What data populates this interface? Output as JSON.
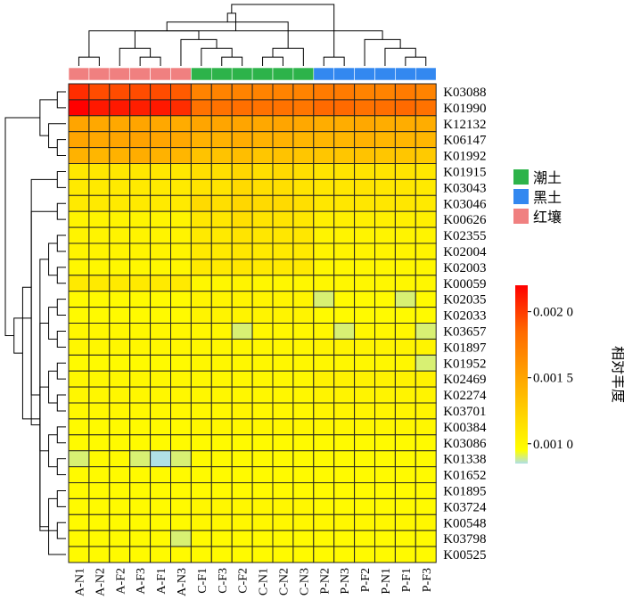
{
  "chart_data": {
    "type": "heatmap",
    "columns": [
      "A-N1",
      "A-N2",
      "A-F2",
      "A-F3",
      "A-F1",
      "A-N3",
      "C-F1",
      "C-F3",
      "C-F2",
      "C-N1",
      "C-N2",
      "C-N3",
      "P-N2",
      "P-N3",
      "P-F2",
      "P-N1",
      "P-F1",
      "P-F3"
    ],
    "column_groups": [
      "红壤",
      "红壤",
      "红壤",
      "红壤",
      "红壤",
      "红壤",
      "潮土",
      "潮土",
      "潮土",
      "潮土",
      "潮土",
      "潮土",
      "黑土",
      "黑土",
      "黑土",
      "黑土",
      "黑土",
      "黑土"
    ],
    "rows": [
      "K03088",
      "K01990",
      "K12132",
      "K06147",
      "K01992",
      "K01915",
      "K03043",
      "K03046",
      "K00626",
      "K02355",
      "K02004",
      "K02003",
      "K00059",
      "K02035",
      "K02033",
      "K03657",
      "K01897",
      "K01952",
      "K02469",
      "K02274",
      "K03701",
      "K00384",
      "K03086",
      "K01338",
      "K01652",
      "K01895",
      "K03724",
      "K00548",
      "K03798",
      "K00525"
    ],
    "values": [
      [
        0.00205,
        0.00195,
        0.00195,
        0.00195,
        0.00195,
        0.0019,
        0.0017,
        0.0017,
        0.0017,
        0.0017,
        0.0017,
        0.0017,
        0.00175,
        0.00175,
        0.0017,
        0.0017,
        0.00175,
        0.0017
      ],
      [
        0.0022,
        0.00212,
        0.00212,
        0.0021,
        0.00212,
        0.00205,
        0.0018,
        0.0018,
        0.00182,
        0.0018,
        0.0018,
        0.00178,
        0.00185,
        0.00185,
        0.0018,
        0.00182,
        0.00185,
        0.0018
      ],
      [
        0.0015,
        0.00148,
        0.00148,
        0.0015,
        0.00148,
        0.00146,
        0.0015,
        0.0015,
        0.0015,
        0.00148,
        0.0015,
        0.00148,
        0.00145,
        0.00145,
        0.00148,
        0.00145,
        0.00145,
        0.00145
      ],
      [
        0.0015,
        0.00148,
        0.0015,
        0.00152,
        0.0015,
        0.00148,
        0.00142,
        0.00142,
        0.00145,
        0.00142,
        0.00142,
        0.0014,
        0.0014,
        0.0014,
        0.00142,
        0.0014,
        0.0014,
        0.0014
      ],
      [
        0.00142,
        0.0014,
        0.00142,
        0.00145,
        0.00142,
        0.0014,
        0.00132,
        0.00132,
        0.00135,
        0.0013,
        0.00132,
        0.0013,
        0.0013,
        0.0013,
        0.00132,
        0.0013,
        0.0013,
        0.00128
      ],
      [
        0.0011,
        0.0011,
        0.0011,
        0.0011,
        0.0011,
        0.0011,
        0.00115,
        0.00115,
        0.0012,
        0.00115,
        0.00118,
        0.00115,
        0.00112,
        0.00112,
        0.00112,
        0.00112,
        0.00112,
        0.0011
      ],
      [
        0.00108,
        0.00108,
        0.00108,
        0.00108,
        0.00108,
        0.00108,
        0.00112,
        0.00112,
        0.00118,
        0.00115,
        0.00115,
        0.00112,
        0.0011,
        0.0011,
        0.00112,
        0.0011,
        0.0011,
        0.00108
      ],
      [
        0.00108,
        0.00108,
        0.00108,
        0.00108,
        0.00108,
        0.00108,
        0.00118,
        0.00115,
        0.0012,
        0.00118,
        0.00118,
        0.00115,
        0.0011,
        0.0011,
        0.0011,
        0.0011,
        0.0011,
        0.00108
      ],
      [
        0.00102,
        0.00102,
        0.00102,
        0.00102,
        0.00102,
        0.00102,
        0.0011,
        0.0011,
        0.00115,
        0.00112,
        0.00112,
        0.0011,
        0.00105,
        0.00105,
        0.00105,
        0.00105,
        0.00105,
        0.00105
      ],
      [
        0.00102,
        0.00102,
        0.00102,
        0.00102,
        0.00102,
        0.00102,
        0.00108,
        0.00108,
        0.00112,
        0.0011,
        0.0011,
        0.0011,
        0.00102,
        0.00102,
        0.00102,
        0.00102,
        0.00102,
        0.00102
      ],
      [
        0.00102,
        0.00102,
        0.00102,
        0.00102,
        0.00102,
        0.00102,
        0.00108,
        0.00108,
        0.0011,
        0.00108,
        0.00108,
        0.00108,
        0.00102,
        0.00102,
        0.00102,
        0.00102,
        0.00102,
        0.00102
      ],
      [
        0.001,
        0.001,
        0.001,
        0.001,
        0.001,
        0.001,
        0.00108,
        0.00108,
        0.0011,
        0.00108,
        0.00108,
        0.00108,
        0.001,
        0.001,
        0.001,
        0.001,
        0.001,
        0.001
      ],
      [
        0.00108,
        0.00108,
        0.00108,
        0.00108,
        0.00108,
        0.00108,
        0.001,
        0.001,
        0.00102,
        0.001,
        0.001,
        0.001,
        0.001,
        0.001,
        0.001,
        0.001,
        0.001,
        0.001
      ],
      [
        0.00098,
        0.00098,
        0.00098,
        0.00098,
        0.00098,
        0.00098,
        0.00102,
        0.00102,
        0.00102,
        0.00102,
        0.00102,
        0.00102,
        0.0009,
        0.00098,
        0.00098,
        0.00098,
        0.0009,
        0.00098
      ],
      [
        0.00098,
        0.00098,
        0.00098,
        0.00098,
        0.00098,
        0.00098,
        0.00102,
        0.00102,
        0.00102,
        0.00102,
        0.00102,
        0.00102,
        0.00098,
        0.00098,
        0.00098,
        0.00098,
        0.00098,
        0.00098
      ],
      [
        0.001,
        0.001,
        0.001,
        0.001,
        0.001,
        0.001,
        0.001,
        0.001,
        0.0009,
        0.001,
        0.001,
        0.001,
        0.001,
        0.0009,
        0.001,
        0.001,
        0.001,
        0.0009
      ],
      [
        0.001,
        0.001,
        0.001,
        0.001,
        0.001,
        0.001,
        0.001,
        0.001,
        0.001,
        0.001,
        0.001,
        0.001,
        0.00102,
        0.00102,
        0.00102,
        0.00102,
        0.00102,
        0.00102
      ],
      [
        0.00098,
        0.00098,
        0.00098,
        0.00098,
        0.00098,
        0.00098,
        0.001,
        0.001,
        0.001,
        0.001,
        0.001,
        0.001,
        0.001,
        0.001,
        0.001,
        0.001,
        0.001,
        0.0009
      ],
      [
        0.001,
        0.001,
        0.001,
        0.001,
        0.001,
        0.001,
        0.001,
        0.001,
        0.001,
        0.001,
        0.001,
        0.001,
        0.00104,
        0.00104,
        0.00104,
        0.00104,
        0.00104,
        0.00104
      ],
      [
        0.001,
        0.001,
        0.001,
        0.001,
        0.001,
        0.001,
        0.001,
        0.001,
        0.001,
        0.001,
        0.001,
        0.001,
        0.00102,
        0.00102,
        0.00102,
        0.00102,
        0.00102,
        0.00102
      ],
      [
        0.001,
        0.001,
        0.001,
        0.001,
        0.001,
        0.001,
        0.001,
        0.001,
        0.00102,
        0.001,
        0.001,
        0.001,
        0.00102,
        0.00102,
        0.00102,
        0.00102,
        0.00102,
        0.00102
      ],
      [
        0.00098,
        0.00098,
        0.00098,
        0.00098,
        0.00098,
        0.00098,
        0.001,
        0.001,
        0.001,
        0.001,
        0.001,
        0.001,
        0.001,
        0.001,
        0.001,
        0.001,
        0.001,
        0.001
      ],
      [
        0.00098,
        0.00098,
        0.00098,
        0.00098,
        0.00098,
        0.00098,
        0.00098,
        0.00098,
        0.00098,
        0.00098,
        0.00098,
        0.00098,
        0.00098,
        0.00098,
        0.00098,
        0.00098,
        0.00098,
        0.00098
      ],
      [
        0.0009,
        0.00098,
        0.00098,
        0.0009,
        0.00085,
        0.0009,
        0.00098,
        0.00098,
        0.00098,
        0.00098,
        0.00098,
        0.00098,
        0.00098,
        0.00098,
        0.00098,
        0.00098,
        0.00098,
        0.00098
      ],
      [
        0.00098,
        0.00098,
        0.00098,
        0.00098,
        0.00098,
        0.00098,
        0.00098,
        0.00098,
        0.00098,
        0.00098,
        0.00098,
        0.00098,
        0.00098,
        0.00098,
        0.00098,
        0.00098,
        0.00098,
        0.00098
      ],
      [
        0.00098,
        0.00098,
        0.00098,
        0.00098,
        0.00098,
        0.00098,
        0.00098,
        0.00098,
        0.00098,
        0.00098,
        0.00098,
        0.00098,
        0.00098,
        0.00098,
        0.00098,
        0.00098,
        0.00098,
        0.00098
      ],
      [
        0.00098,
        0.00098,
        0.00098,
        0.00098,
        0.00098,
        0.00098,
        0.001,
        0.001,
        0.001,
        0.001,
        0.001,
        0.001,
        0.00098,
        0.00098,
        0.00098,
        0.00098,
        0.00098,
        0.00098
      ],
      [
        0.00098,
        0.00098,
        0.00098,
        0.00098,
        0.00098,
        0.00098,
        0.001,
        0.001,
        0.001,
        0.001,
        0.001,
        0.001,
        0.001,
        0.001,
        0.001,
        0.001,
        0.001,
        0.001
      ],
      [
        0.00098,
        0.00098,
        0.00098,
        0.00098,
        0.00098,
        0.0009,
        0.00098,
        0.00098,
        0.00098,
        0.00098,
        0.00098,
        0.00098,
        0.00098,
        0.00098,
        0.00098,
        0.00098,
        0.00098,
        0.00098
      ],
      [
        0.00098,
        0.00098,
        0.00098,
        0.00098,
        0.00098,
        0.00098,
        0.00098,
        0.00098,
        0.00098,
        0.00098,
        0.00098,
        0.00098,
        0.00098,
        0.00098,
        0.00098,
        0.00098,
        0.00098,
        0.00098
      ]
    ],
    "color_scale": {
      "min": 0.00085,
      "max": 0.0022,
      "stops": [
        {
          "v": 0.00085,
          "color": "#b0e0e6"
        },
        {
          "v": 0.00095,
          "color": "#ffff00"
        },
        {
          "v": 0.0012,
          "color": "#ffd700"
        },
        {
          "v": 0.0015,
          "color": "#ffa500"
        },
        {
          "v": 0.00185,
          "color": "#ff6a00"
        },
        {
          "v": 0.0022,
          "color": "#ff0000"
        }
      ],
      "ticks": [
        {
          "v": 0.001,
          "label": "0.001 0"
        },
        {
          "v": 0.0015,
          "label": "0.001 5"
        },
        {
          "v": 0.002,
          "label": "0.002 0"
        }
      ],
      "title": "相对丰度"
    },
    "legend": [
      {
        "label": "潮土",
        "color": "#2db34a"
      },
      {
        "label": "黑土",
        "color": "#3388f0"
      },
      {
        "label": "红壤",
        "color": "#f08080"
      }
    ],
    "group_colors": {
      "红壤": "#f08080",
      "潮土": "#2db34a",
      "黑土": "#3388f0"
    },
    "column_dendrogram": [
      [
        12,
        13
      ],
      [
        16,
        17
      ],
      [
        19,
        15
      ],
      [
        14,
        20
      ],
      [
        7,
        8
      ],
      [
        9,
        10
      ],
      [
        23,
        11
      ],
      [
        22,
        6
      ],
      [
        3,
        4
      ],
      [
        25,
        5
      ],
      [
        2,
        26
      ],
      [
        0,
        1
      ],
      [
        28,
        27
      ],
      [
        21,
        29
      ],
      [
        24,
        30
      ],
      [
        31,
        32
      ],
      [
        18,
        33
      ]
    ],
    "row_dendrogram": [
      [
        0,
        1
      ],
      [
        3,
        4
      ],
      [
        2,
        31
      ],
      [
        32,
        30
      ],
      [
        5,
        6
      ],
      [
        7,
        8
      ],
      [
        9,
        10
      ],
      [
        11,
        12
      ],
      [
        13,
        14
      ],
      [
        15,
        16
      ],
      [
        17,
        18
      ],
      [
        19,
        20
      ],
      [
        21,
        22
      ],
      [
        23,
        24
      ],
      [
        25,
        26
      ],
      [
        27,
        28
      ],
      [
        29,
        44
      ],
      [
        36,
        37
      ],
      [
        38,
        39
      ],
      [
        40,
        41
      ],
      [
        42,
        43
      ],
      [
        45,
        47
      ],
      [
        46,
        48
      ],
      [
        49,
        50
      ],
      [
        51,
        34
      ],
      [
        52,
        35
      ],
      [
        53,
        54
      ],
      [
        55,
        56
      ],
      [
        57,
        33
      ]
    ]
  }
}
